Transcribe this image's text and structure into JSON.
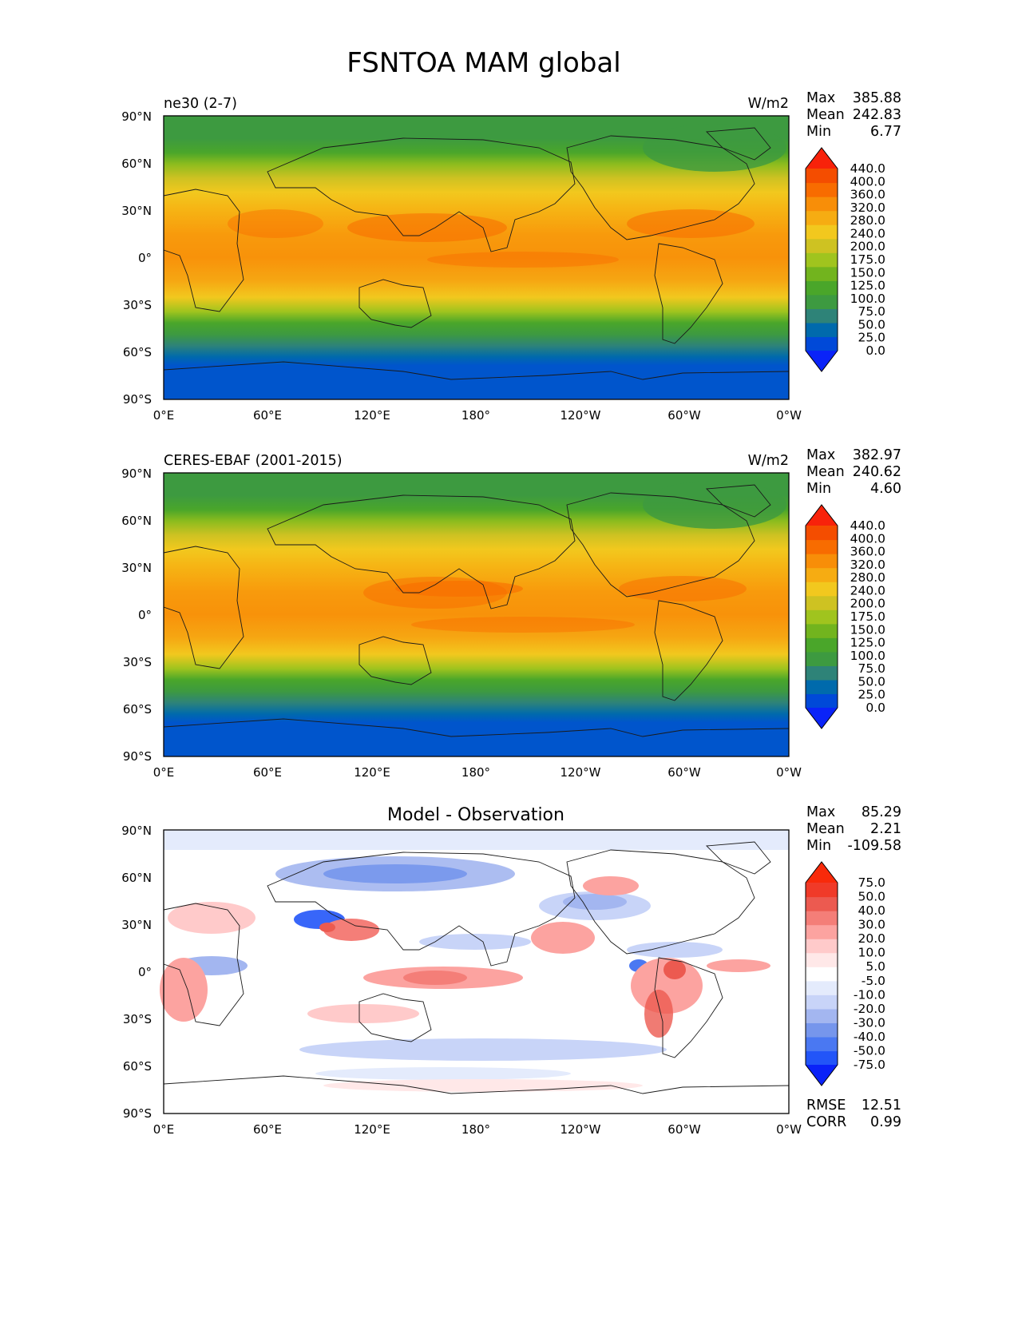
{
  "figure": {
    "title": "FSNTOA MAM global"
  },
  "axes": {
    "lat_ticks": [
      "90°N",
      "60°N",
      "30°N",
      "0°",
      "30°S",
      "60°S",
      "90°S"
    ],
    "lon_ticks": [
      "0°E",
      "60°E",
      "120°E",
      "180°",
      "120°W",
      "60°W",
      "0°W"
    ]
  },
  "abs_levels": [
    "440.0",
    "400.0",
    "360.0",
    "320.0",
    "280.0",
    "240.0",
    "200.0",
    "175.0",
    "150.0",
    "125.0",
    "100.0",
    "75.0",
    "50.0",
    "25.0",
    "0.0"
  ],
  "abs_colors": [
    "#0a23f8",
    "#0049d8",
    "#006aac",
    "#2e8378",
    "#3d9a40",
    "#4aa62a",
    "#72b41e",
    "#a0c41e",
    "#cec222",
    "#f2c81e",
    "#f6ac12",
    "#f88e08",
    "#f86c00",
    "#f44d00",
    "#f8220a"
  ],
  "diff_levels": [
    "75.0",
    "50.0",
    "40.0",
    "30.0",
    "20.0",
    "10.0",
    "5.0",
    "-5.0",
    "-10.0",
    "-20.0",
    "-30.0",
    "-40.0",
    "-50.0",
    "-75.0"
  ],
  "diff_colors": [
    "#0a22f8",
    "#2255f8",
    "#4a78f2",
    "#7696ec",
    "#a3b6f0",
    "#c8d4f8",
    "#e4ebfc",
    "#ffffff",
    "#ffe8e8",
    "#ffcaca",
    "#fca3a0",
    "#f47e78",
    "#ec5a50",
    "#f03a28",
    "#f82a0a"
  ],
  "panels": [
    {
      "label": "ne30 (2-7)",
      "units": "W/m2",
      "type": "abs",
      "stats": [
        {
          "name": "Max",
          "value": "385.88"
        },
        {
          "name": "Mean",
          "value": "242.83"
        },
        {
          "name": "Min",
          "value": "6.77"
        }
      ]
    },
    {
      "label": "CERES-EBAF (2001-2015)",
      "units": "W/m2",
      "type": "abs",
      "stats": [
        {
          "name": "Max",
          "value": "382.97"
        },
        {
          "name": "Mean",
          "value": "240.62"
        },
        {
          "name": "Min",
          "value": "4.60"
        }
      ]
    },
    {
      "label": "Model - Observation",
      "type": "diff",
      "stats": [
        {
          "name": "Max",
          "value": "85.29"
        },
        {
          "name": "Mean",
          "value": "2.21"
        },
        {
          "name": "Min",
          "value": "-109.58"
        }
      ],
      "metrics": [
        {
          "name": "RMSE",
          "value": "12.51"
        },
        {
          "name": "CORR",
          "value": "0.99"
        }
      ]
    }
  ]
}
